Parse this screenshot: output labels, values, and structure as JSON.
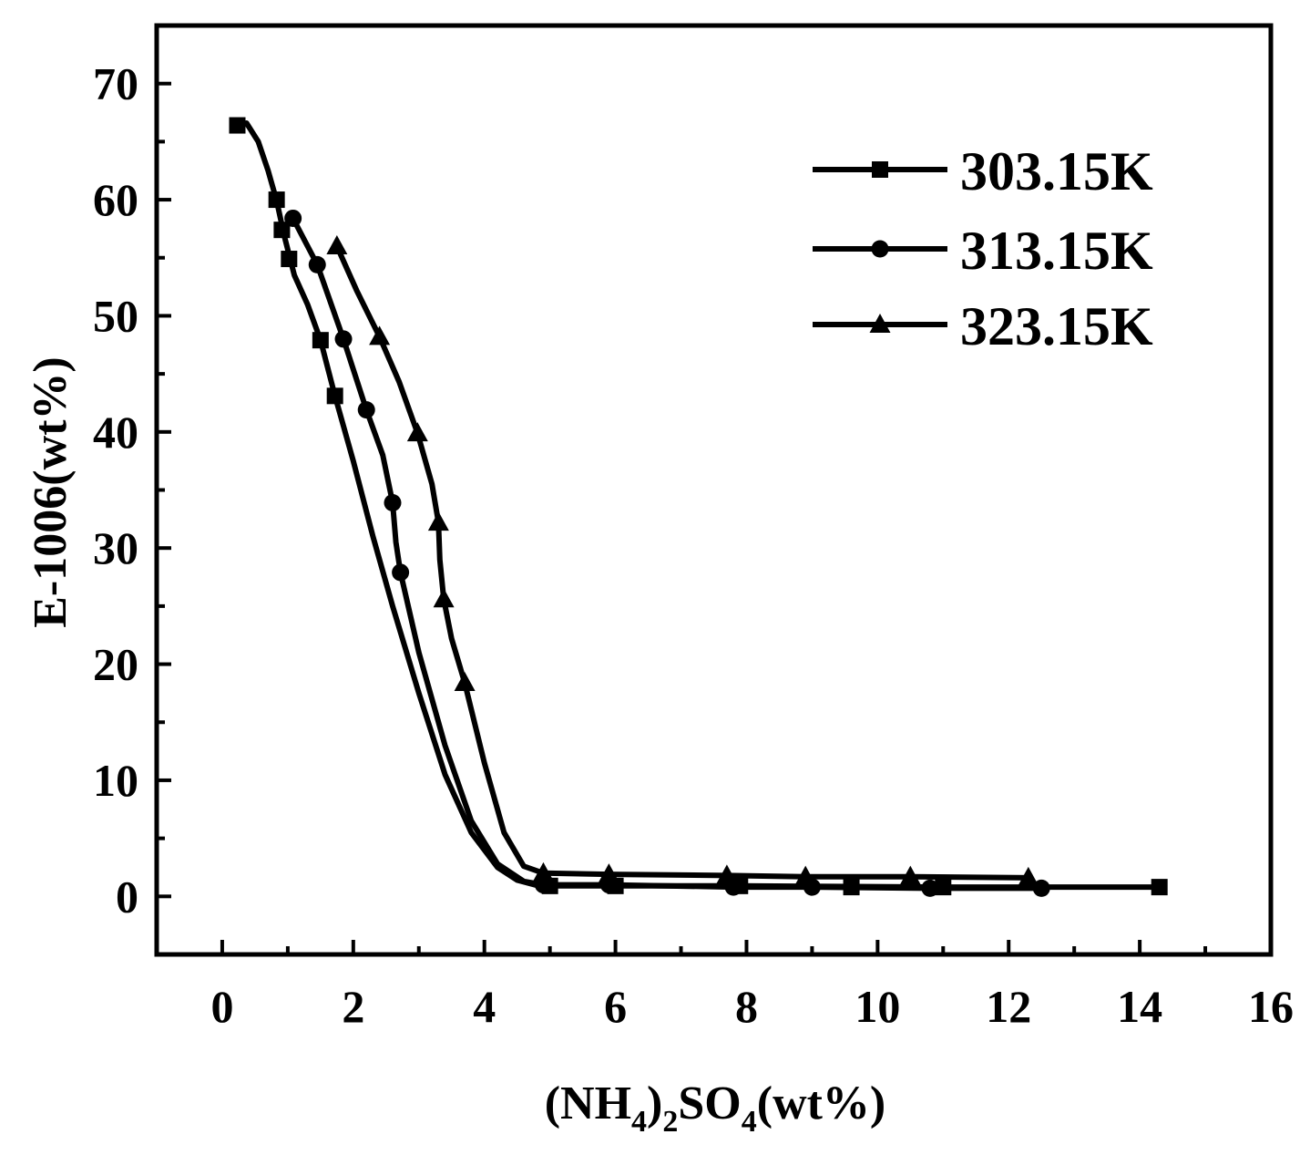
{
  "chart_data": {
    "type": "line",
    "xlabel": {
      "base1": "(NH",
      "sub1": "4",
      "base2": ")",
      "sub2": "2",
      "base3": "SO",
      "sub3": "4",
      "base4": "(wt%)"
    },
    "ylabel": "E-1006(wt%)",
    "xlim": [
      -1,
      16
    ],
    "ylim": [
      -5,
      75
    ],
    "xticks": [
      0,
      2,
      4,
      6,
      8,
      10,
      12,
      14,
      16
    ],
    "yticks": [
      0,
      10,
      20,
      30,
      40,
      50,
      60,
      70
    ],
    "xtick_labels": [
      "0",
      "2",
      "4",
      "6",
      "8",
      "10",
      "12",
      "14",
      "16"
    ],
    "ytick_labels": [
      "0",
      "10",
      "20",
      "30",
      "40",
      "50",
      "60",
      "70"
    ],
    "legend_position": "top-right",
    "series": [
      {
        "name": "303.15K",
        "marker": "square",
        "points": [
          [
            0.23,
            66.4
          ],
          [
            0.83,
            60.0
          ],
          [
            0.91,
            57.4
          ],
          [
            1.02,
            54.9
          ],
          [
            1.5,
            47.9
          ],
          [
            1.72,
            43.1
          ],
          [
            5.0,
            0.9
          ],
          [
            6.0,
            0.9
          ],
          [
            7.9,
            0.9
          ],
          [
            9.6,
            0.8
          ],
          [
            11.0,
            0.8
          ],
          [
            14.3,
            0.8
          ]
        ],
        "curve_x": [
          0.23,
          0.37,
          0.55,
          0.7,
          0.83,
          0.95,
          1.1,
          1.3,
          1.5,
          1.72,
          2.0,
          2.3,
          2.6,
          3.0,
          3.4,
          3.8,
          4.2,
          4.5,
          4.8,
          5.0,
          6.0,
          7.9,
          9.6,
          11.0,
          14.3
        ],
        "curve_y": [
          66.4,
          66.6,
          65.0,
          62.5,
          59.9,
          56.8,
          53.5,
          51.0,
          47.9,
          43.1,
          37.5,
          31.0,
          25.0,
          17.5,
          10.5,
          5.5,
          2.5,
          1.4,
          0.95,
          0.9,
          0.9,
          0.9,
          0.85,
          0.8,
          0.8
        ]
      },
      {
        "name": "313.15K",
        "marker": "circle",
        "points": [
          [
            1.08,
            58.4
          ],
          [
            1.45,
            54.4
          ],
          [
            1.85,
            48.0
          ],
          [
            2.2,
            41.9
          ],
          [
            2.6,
            33.9
          ],
          [
            2.72,
            27.9
          ],
          [
            4.9,
            1.0
          ],
          [
            5.9,
            1.0
          ],
          [
            7.8,
            0.8
          ],
          [
            9.0,
            0.8
          ],
          [
            10.8,
            0.7
          ],
          [
            12.5,
            0.7
          ]
        ],
        "curve_x": [
          1.08,
          1.45,
          1.85,
          2.2,
          2.45,
          2.6,
          2.65,
          2.72,
          3.0,
          3.4,
          3.8,
          4.2,
          4.6,
          4.9,
          5.9,
          7.8,
          9.0,
          10.8,
          12.5
        ],
        "curve_y": [
          58.4,
          54.4,
          48.0,
          41.9,
          38.0,
          33.9,
          30.5,
          27.9,
          21.0,
          13.0,
          6.5,
          2.8,
          1.3,
          1.0,
          1.0,
          0.8,
          0.8,
          0.7,
          0.7
        ]
      },
      {
        "name": "323.15K",
        "marker": "triangle",
        "points": [
          [
            1.75,
            56.0
          ],
          [
            2.4,
            48.2
          ],
          [
            2.98,
            39.9
          ],
          [
            3.3,
            32.2
          ],
          [
            3.38,
            25.6
          ],
          [
            3.7,
            18.4
          ],
          [
            4.9,
            2.0
          ],
          [
            5.9,
            1.9
          ],
          [
            7.7,
            1.8
          ],
          [
            8.9,
            1.7
          ],
          [
            10.5,
            1.7
          ],
          [
            12.3,
            1.6
          ]
        ],
        "curve_x": [
          1.75,
          2.05,
          2.4,
          2.7,
          2.98,
          3.2,
          3.3,
          3.32,
          3.38,
          3.5,
          3.7,
          4.0,
          4.3,
          4.6,
          4.9,
          5.9,
          7.7,
          8.9,
          10.5,
          12.3
        ],
        "curve_y": [
          56.0,
          52.2,
          48.2,
          44.3,
          39.9,
          35.5,
          32.2,
          29.0,
          25.6,
          22.2,
          18.4,
          11.5,
          5.5,
          2.6,
          2.0,
          1.9,
          1.8,
          1.7,
          1.7,
          1.6
        ]
      }
    ]
  }
}
